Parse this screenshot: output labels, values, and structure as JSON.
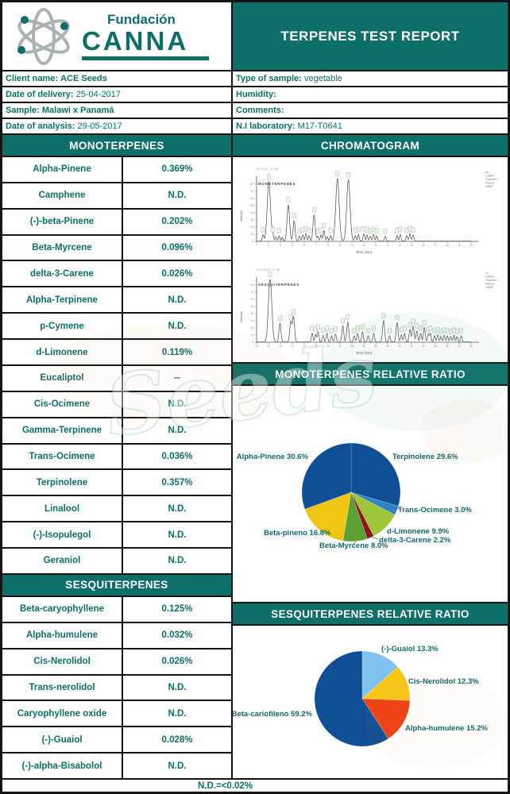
{
  "header": {
    "brand": {
      "line1": "Fundación",
      "line2": "CANNA"
    },
    "title": "TERPENES TEST REPORT"
  },
  "info": {
    "rows": [
      {
        "left_label": "Client name:",
        "left_value": "ACE Seeds",
        "left_value_bold": true,
        "right_label": "Type of sample:",
        "right_value": "vegetable"
      },
      {
        "left_label": "Date of delivery:",
        "left_value": "25-04-2017",
        "left_value_bold": false,
        "right_label": "Humidity:",
        "right_value": ""
      },
      {
        "left_label": "Sample:",
        "left_value": "Malawi x Panamá",
        "left_value_bold": true,
        "right_label": "Comments:",
        "right_value": ""
      },
      {
        "left_label": "Date of analysis:",
        "left_value": "29-05-2017",
        "left_value_bold": false,
        "right_label": "N.I laboratory:",
        "right_value": "M17-T0641"
      }
    ]
  },
  "sections": {
    "monoterpenes": "MONOTERPENES",
    "sesquiterpenes": "SESQUITERPENES",
    "chromatogram": "CHROMATOGRAM",
    "mono_ratio": "MONOTERPENES RELATIVE RATIO",
    "sesqui_ratio": "SESQUITERPENES RELATIVE RATIO"
  },
  "monoterpenes_table": {
    "rows": [
      {
        "name": "Alpha-Pinene",
        "value": "0.369%"
      },
      {
        "name": "Camphene",
        "value": "N.D."
      },
      {
        "name": "(-)-beta-Pinene",
        "value": "0.202%"
      },
      {
        "name": "Beta-Myrcene",
        "value": "0.096%"
      },
      {
        "name": "delta-3-Carene",
        "value": "0.026%"
      },
      {
        "name": "Alpha-Terpinene",
        "value": "N.D."
      },
      {
        "name": "p-Cymene",
        "value": "N.D."
      },
      {
        "name": "d-Limonene",
        "value": "0.119%"
      },
      {
        "name": "Eucaliptol",
        "value": "--"
      },
      {
        "name": "Cis-Ocimene",
        "value": "N.D."
      },
      {
        "name": "Gamma-Terpinene",
        "value": "N.D."
      },
      {
        "name": "Trans-Ocimene",
        "value": "0.036%"
      },
      {
        "name": "Terpinolene",
        "value": "0.357%"
      },
      {
        "name": "Linalool",
        "value": "N.D."
      },
      {
        "name": "(-)-Isopulegol",
        "value": "N.D."
      },
      {
        "name": "Geraniol",
        "value": "N.D."
      }
    ]
  },
  "sesquiterpenes_table": {
    "rows": [
      {
        "name": "Beta-caryophyllene",
        "value": "0.125%"
      },
      {
        "name": "Alpha-humulene",
        "value": "0.032%"
      },
      {
        "name": "Cis-Nerolidol",
        "value": "0.026%"
      },
      {
        "name": "Trans-nerolidol",
        "value": "N.D."
      },
      {
        "name": "Caryophyllene oxide",
        "value": "N.D."
      },
      {
        "name": "(-)-Guaiol",
        "value": "0.028%"
      },
      {
        "name": "(-)-alpha-Bisabolol",
        "value": "N.D."
      }
    ]
  },
  "chart_data": [
    {
      "type": "pie",
      "id": "mono-pie",
      "title": "MONOTERPENES RELATIVE RATIO",
      "legend": "none",
      "slices": [
        {
          "label": "Terpinolene 29.6%",
          "name": "Terpinolene",
          "value": 29.6,
          "color": "#0F4F96"
        },
        {
          "label": "Trans-Ocimene 3.0%",
          "name": "Trans-Ocimene",
          "value": 3.0,
          "color": "#2C83C6"
        },
        {
          "label": "d-Limonene 9.9%",
          "name": "d-Limonene",
          "value": 9.9,
          "color": "#9FC63B"
        },
        {
          "label": "delta-3-Carene 2.2%",
          "name": "delta-3-Carene",
          "value": 2.2,
          "color": "#8E1220"
        },
        {
          "label": "Beta-Myrcene 8.0%",
          "name": "Beta-Myrcene",
          "value": 8.0,
          "color": "#5BA032"
        },
        {
          "label": "Beta-pineno 16.8%",
          "name": "Beta-pineno",
          "value": 16.8,
          "color": "#F0C413"
        },
        {
          "label": "Alpha-Pinene 30.6%",
          "name": "Alpha-Pinene",
          "value": 30.6,
          "color": "#0F4F96"
        }
      ]
    },
    {
      "type": "pie",
      "id": "sesqui-pie",
      "title": "SESQUITERPENES RELATIVE RATIO",
      "legend": "none",
      "slices": [
        {
          "label": "(-)-Guaiol 13.3%",
          "name": "(-)-Guaiol",
          "value": 13.3,
          "color": "#7EC3F0"
        },
        {
          "label": "Cis-Nerolidol 12.3%",
          "name": "Cis-Nerolidol",
          "value": 12.3,
          "color": "#F8C716"
        },
        {
          "label": "Alpha-humulene 15.2%",
          "name": "Alpha-humulene",
          "value": 15.2,
          "color": "#F04016"
        },
        {
          "label": "Beta-cariofileno 59.2%",
          "name": "Beta-cariofileno",
          "value": 59.2,
          "color": "#0F4F96"
        }
      ]
    },
    {
      "type": "line",
      "id": "chrom-mono",
      "title": "MONOTERPENES",
      "xlabel": "Time (min)",
      "ylabel": "Intensity",
      "meta": "RT: 5.02 - 13.45",
      "side_note": [
        "Id.:",
        "1.8951",
        "Channel 1",
        "Analog",
        "78841"
      ],
      "tick_start": 2,
      "peaks": [
        [
          0.03,
          0.1
        ],
        [
          0.057,
          0.95
        ],
        [
          0.075,
          0.1
        ],
        [
          0.09,
          0.07
        ],
        [
          0.105,
          0.09
        ],
        [
          0.12,
          0.06
        ],
        [
          0.148,
          0.58
        ],
        [
          0.175,
          0.33
        ],
        [
          0.2,
          0.08
        ],
        [
          0.215,
          0.1
        ],
        [
          0.23,
          0.12
        ],
        [
          0.245,
          0.09
        ],
        [
          0.268,
          0.42
        ],
        [
          0.285,
          0.08
        ],
        [
          0.3,
          0.1
        ],
        [
          0.314,
          0.17
        ],
        [
          0.33,
          0.07
        ],
        [
          0.345,
          0.09
        ],
        [
          0.377,
          1.0
        ],
        [
          0.428,
          0.98
        ],
        [
          0.46,
          0.09
        ],
        [
          0.475,
          0.11
        ],
        [
          0.5,
          0.12
        ],
        [
          0.515,
          0.1
        ],
        [
          0.53,
          0.08
        ],
        [
          0.545,
          0.11
        ],
        [
          0.56,
          0.09
        ],
        [
          0.6,
          0.08
        ],
        [
          0.655,
          0.09
        ],
        [
          0.67,
          0.11
        ],
        [
          0.7,
          0.09
        ],
        [
          0.715,
          0.12
        ],
        [
          0.73,
          0.1
        ]
      ]
    },
    {
      "type": "line",
      "id": "chrom-sesqui",
      "title": "SESQUITERPENES",
      "xlabel": "Time (min)",
      "ylabel": "Intensity",
      "meta": "RT: 14.03 - 27.58",
      "side_note": [
        "Id.:",
        "3.8951",
        "Channel 1",
        "Analog",
        "78841"
      ],
      "tick_start": 20,
      "peaks": [
        [
          0.063,
          1.0
        ],
        [
          0.109,
          0.3
        ],
        [
          0.159,
          0.32
        ],
        [
          0.172,
          0.4
        ],
        [
          0.259,
          0.14
        ],
        [
          0.275,
          0.12
        ],
        [
          0.287,
          0.16
        ],
        [
          0.31,
          0.11
        ],
        [
          0.328,
          0.14
        ],
        [
          0.35,
          0.1
        ],
        [
          0.368,
          0.13
        ],
        [
          0.402,
          0.26
        ],
        [
          0.425,
          0.32
        ],
        [
          0.455,
          0.1
        ],
        [
          0.471,
          0.14
        ],
        [
          0.494,
          0.16
        ],
        [
          0.52,
          0.1
        ],
        [
          0.546,
          0.14
        ],
        [
          0.592,
          0.34
        ],
        [
          0.62,
          0.1
        ],
        [
          0.655,
          0.31
        ],
        [
          0.675,
          0.12
        ],
        [
          0.69,
          0.14
        ],
        [
          0.715,
          0.2
        ],
        [
          0.73,
          0.25
        ],
        [
          0.747,
          0.18
        ],
        [
          0.765,
          0.14
        ],
        [
          0.782,
          0.23
        ],
        [
          0.8,
          0.12
        ],
        [
          0.81,
          0.14
        ],
        [
          0.83,
          0.1
        ],
        [
          0.845,
          0.12
        ],
        [
          0.86,
          0.09
        ],
        [
          0.875,
          0.11
        ],
        [
          0.89,
          0.1
        ],
        [
          0.905,
          0.09
        ],
        [
          0.92,
          0.11
        ],
        [
          0.935,
          0.09
        ],
        [
          0.954,
          0.1
        ]
      ]
    }
  ],
  "footer": {
    "note": "N.D.=<0.02%"
  },
  "watermark": {
    "text": "Seeds"
  }
}
